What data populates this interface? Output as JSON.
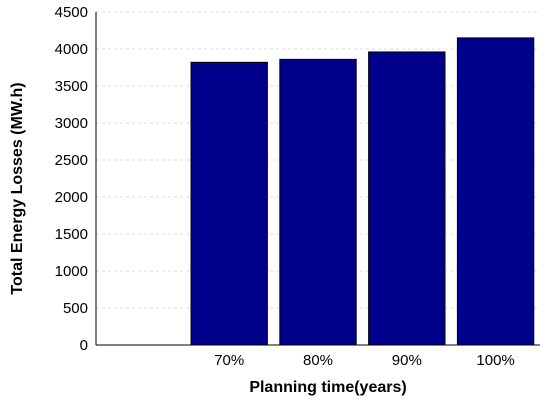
{
  "chart_data": {
    "type": "bar",
    "categories": [
      "70%",
      "80%",
      "90%",
      "100%"
    ],
    "values": [
      3820,
      3860,
      3960,
      4150
    ],
    "title": "",
    "xlabel": "Planning time(years)",
    "ylabel": "Total Energy Losses (MW.h)",
    "ylim": [
      0,
      4500
    ],
    "yticks": [
      0,
      500,
      1000,
      1500,
      2000,
      2500,
      3000,
      3500,
      4000,
      4500
    ],
    "grid": true,
    "bar_color": "#00008B"
  }
}
